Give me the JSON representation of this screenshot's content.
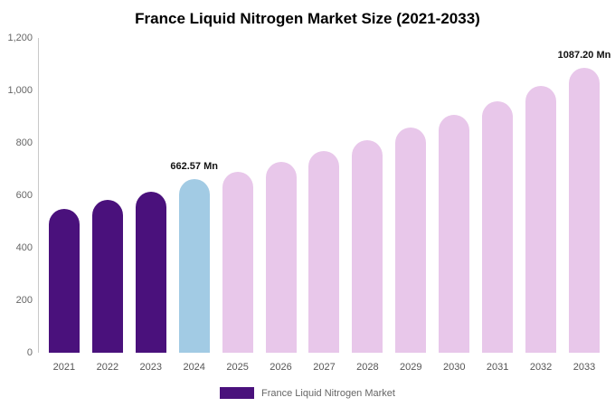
{
  "title": "France Liquid Nitrogen Market Size (2021-2033)",
  "legend": {
    "label": "France Liquid Nitrogen Market",
    "swatch_color": "#4a117c"
  },
  "colors": {
    "historical_bar": "#4a117c",
    "highlight_bar": "#a2cbe4",
    "forecast_bar": "#e8c7ea",
    "axis_line": "#c9c9c9",
    "tick_text": "#666666",
    "data_label_text": "#111111"
  },
  "chart_data": {
    "type": "bar",
    "title": "France Liquid Nitrogen Market Size (2021-2033)",
    "xlabel": "",
    "ylabel": "",
    "unit": "Mn",
    "categories": [
      "2021",
      "2022",
      "2023",
      "2024",
      "2025",
      "2026",
      "2027",
      "2028",
      "2029",
      "2030",
      "2031",
      "2032",
      "2033"
    ],
    "values": [
      550,
      583,
      613,
      662.57,
      690,
      728,
      768,
      812,
      858,
      908,
      960,
      1018,
      1087.2
    ],
    "bar_colors": [
      "#4a117c",
      "#4a117c",
      "#4a117c",
      "#a2cbe4",
      "#e8c7ea",
      "#e8c7ea",
      "#e8c7ea",
      "#e8c7ea",
      "#e8c7ea",
      "#e8c7ea",
      "#e8c7ea",
      "#e8c7ea",
      "#e8c7ea"
    ],
    "data_labels": [
      {
        "index": 3,
        "text": "662.57 Mn"
      },
      {
        "index": 12,
        "text": "1087.20 Mn"
      }
    ],
    "ylim": [
      0,
      1200
    ],
    "yticks": [
      {
        "value": 0,
        "label": "0"
      },
      {
        "value": 200,
        "label": "200"
      },
      {
        "value": 400,
        "label": "400"
      },
      {
        "value": 600,
        "label": "600"
      },
      {
        "value": 800,
        "label": "800"
      },
      {
        "value": 1000,
        "label": "1,000"
      },
      {
        "value": 1200,
        "label": "1,200"
      }
    ],
    "grid": false,
    "legend_position": "bottom",
    "legend_entries": [
      "France Liquid Nitrogen Market"
    ]
  }
}
